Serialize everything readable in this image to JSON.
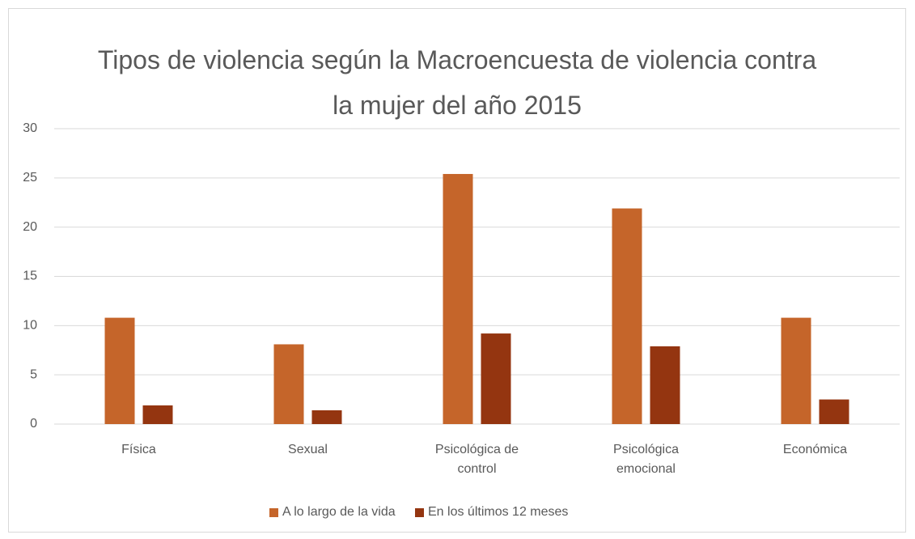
{
  "chart_data": {
    "type": "bar",
    "title": "Tipos de violencia según la Macroencuesta de violencia contra la mujer del año 2015",
    "categories": [
      "Física",
      "Sexual",
      "Psicológica de control",
      "Psicológica emocional",
      "Económica"
    ],
    "series": [
      {
        "name": "A lo largo de la vida",
        "color": "#c5652a",
        "values": [
          10.8,
          8.1,
          25.4,
          21.9,
          10.8
        ]
      },
      {
        "name": "En los últimos 12 meses",
        "color": "#943510",
        "values": [
          1.9,
          1.4,
          9.2,
          7.9,
          2.5
        ]
      }
    ],
    "ylim": [
      0,
      30
    ],
    "yticks": [
      0,
      5,
      10,
      15,
      20,
      25,
      30
    ],
    "grid": true,
    "legend": "bottom"
  }
}
